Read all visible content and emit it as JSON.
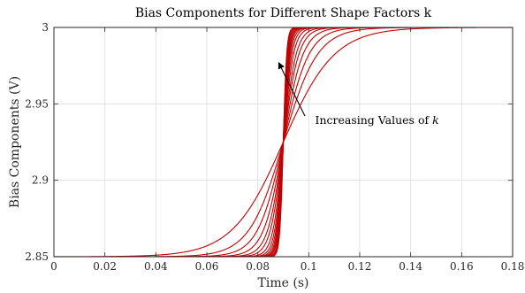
{
  "chart_data": {
    "type": "line",
    "title": "Bias Components for Different Shape Factors k",
    "xlabel": "Time (s)",
    "ylabel": "Bias Components (V)",
    "xlim": [
      0,
      0.18
    ],
    "ylim": [
      2.85,
      3.0
    ],
    "xticks": [
      0,
      0.02,
      0.04,
      0.06,
      0.08,
      0.1,
      0.12,
      0.14,
      0.16,
      0.18
    ],
    "xtick_labels": [
      "0",
      "0.02",
      "0.04",
      "0.06",
      "0.08",
      "0.1",
      "0.12",
      "0.14",
      "0.16",
      "0.18"
    ],
    "yticks": [
      2.85,
      2.9,
      2.95,
      3.0
    ],
    "ytick_labels": [
      "2.85",
      "2.9",
      "2.95",
      "3"
    ],
    "grid": true,
    "line_color": "#c00000",
    "curve_model": "sigmoid: y = 2.85 + 0.15 / (1 + exp(-k (t - 0.09)))",
    "center_time": 0.09,
    "low_value": 2.85,
    "high_value": 3.0,
    "k_values": [
      100,
      150,
      200,
      260,
      330,
      400,
      500,
      600,
      700,
      800,
      900,
      1000,
      1150,
      1300,
      1500
    ],
    "annotation": {
      "text_prefix": "Increasing Values of ",
      "text_var": "k",
      "arrow_from": [
        0.0985,
        2.942
      ],
      "arrow_to": [
        0.0882,
        2.977
      ],
      "text_at": [
        0.1025,
        2.937
      ]
    }
  }
}
